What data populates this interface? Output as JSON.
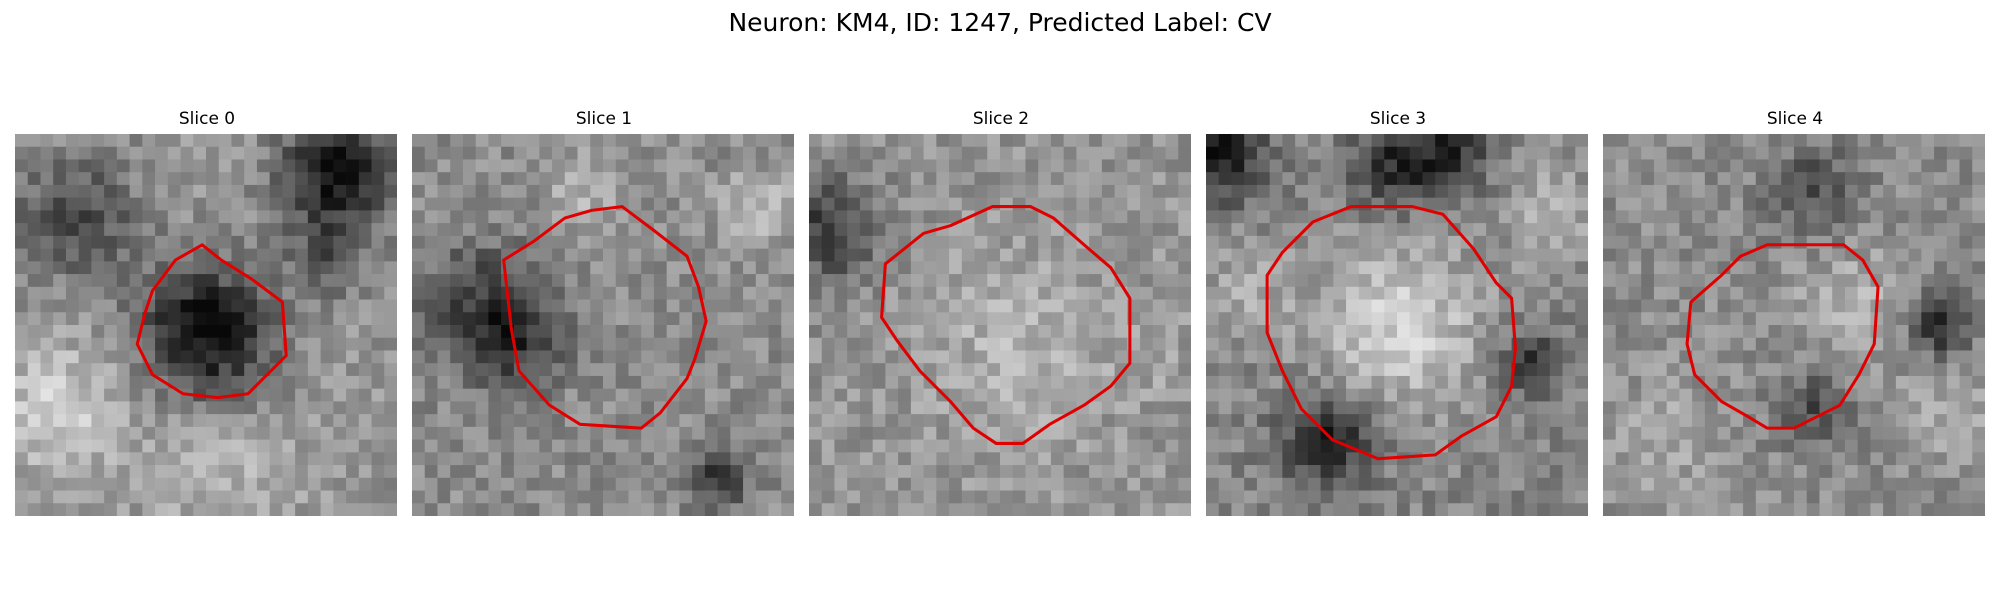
{
  "figure": {
    "title": "Neuron: KM4, ID: 1247, Predicted Label: CV",
    "contour_color": "#e00000"
  },
  "slices": [
    {
      "label": "Slice 0",
      "contour": [
        [
          0.42,
          0.33
        ],
        [
          0.49,
          0.29
        ],
        [
          0.54,
          0.33
        ],
        [
          0.62,
          0.38
        ],
        [
          0.7,
          0.44
        ],
        [
          0.71,
          0.58
        ],
        [
          0.65,
          0.64
        ],
        [
          0.61,
          0.68
        ],
        [
          0.53,
          0.69
        ],
        [
          0.44,
          0.68
        ],
        [
          0.36,
          0.63
        ],
        [
          0.32,
          0.55
        ],
        [
          0.34,
          0.47
        ],
        [
          0.36,
          0.41
        ]
      ]
    },
    {
      "label": "Slice 1",
      "contour": [
        [
          0.24,
          0.33
        ],
        [
          0.32,
          0.28
        ],
        [
          0.4,
          0.22
        ],
        [
          0.47,
          0.2
        ],
        [
          0.55,
          0.19
        ],
        [
          0.63,
          0.25
        ],
        [
          0.72,
          0.32
        ],
        [
          0.75,
          0.4
        ],
        [
          0.77,
          0.49
        ],
        [
          0.74,
          0.59
        ],
        [
          0.72,
          0.64
        ],
        [
          0.65,
          0.73
        ],
        [
          0.6,
          0.77
        ],
        [
          0.44,
          0.76
        ],
        [
          0.36,
          0.71
        ],
        [
          0.28,
          0.62
        ],
        [
          0.26,
          0.51
        ]
      ]
    },
    {
      "label": "Slice 2",
      "contour": [
        [
          0.2,
          0.34
        ],
        [
          0.3,
          0.26
        ],
        [
          0.37,
          0.24
        ],
        [
          0.48,
          0.19
        ],
        [
          0.58,
          0.19
        ],
        [
          0.64,
          0.22
        ],
        [
          0.72,
          0.29
        ],
        [
          0.79,
          0.35
        ],
        [
          0.84,
          0.43
        ],
        [
          0.84,
          0.6
        ],
        [
          0.79,
          0.66
        ],
        [
          0.72,
          0.71
        ],
        [
          0.63,
          0.76
        ],
        [
          0.56,
          0.81
        ],
        [
          0.49,
          0.81
        ],
        [
          0.43,
          0.77
        ],
        [
          0.37,
          0.7
        ],
        [
          0.29,
          0.62
        ],
        [
          0.23,
          0.54
        ],
        [
          0.19,
          0.48
        ]
      ]
    },
    {
      "label": "Slice 3",
      "contour": [
        [
          0.16,
          0.37
        ],
        [
          0.2,
          0.31
        ],
        [
          0.28,
          0.23
        ],
        [
          0.38,
          0.19
        ],
        [
          0.54,
          0.19
        ],
        [
          0.62,
          0.21
        ],
        [
          0.7,
          0.3
        ],
        [
          0.76,
          0.39
        ],
        [
          0.8,
          0.43
        ],
        [
          0.81,
          0.56
        ],
        [
          0.8,
          0.66
        ],
        [
          0.76,
          0.74
        ],
        [
          0.67,
          0.79
        ],
        [
          0.6,
          0.84
        ],
        [
          0.45,
          0.85
        ],
        [
          0.33,
          0.8
        ],
        [
          0.25,
          0.72
        ],
        [
          0.2,
          0.62
        ],
        [
          0.16,
          0.52
        ]
      ]
    },
    {
      "label": "Slice 4",
      "contour": [
        [
          0.23,
          0.44
        ],
        [
          0.31,
          0.37
        ],
        [
          0.36,
          0.32
        ],
        [
          0.43,
          0.29
        ],
        [
          0.63,
          0.29
        ],
        [
          0.68,
          0.33
        ],
        [
          0.72,
          0.4
        ],
        [
          0.71,
          0.55
        ],
        [
          0.67,
          0.63
        ],
        [
          0.62,
          0.71
        ],
        [
          0.56,
          0.74
        ],
        [
          0.5,
          0.77
        ],
        [
          0.43,
          0.77
        ],
        [
          0.38,
          0.74
        ],
        [
          0.31,
          0.7
        ],
        [
          0.24,
          0.63
        ],
        [
          0.22,
          0.55
        ]
      ]
    }
  ]
}
